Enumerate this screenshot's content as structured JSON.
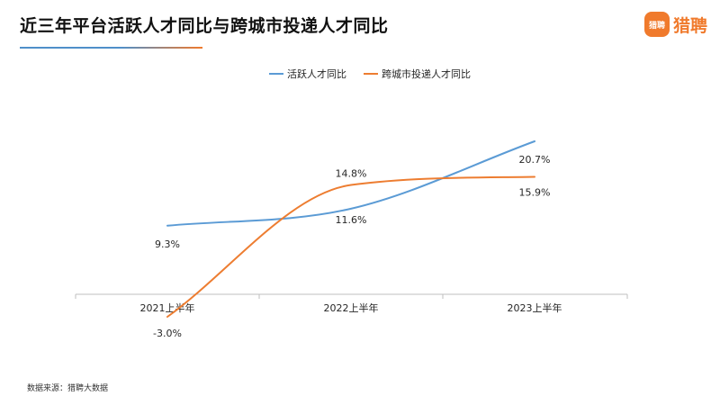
{
  "header": {
    "title": "近三年平台活跃人才同比与跨城市投递人才同比",
    "logo_badge": "猎聘",
    "logo_text": "猎聘"
  },
  "colors": {
    "accent": "#f07a2c",
    "underline_blue": "#4f8fc9",
    "series1": "#5b9bd5",
    "series2": "#ed7d31",
    "axis": "#bfbfbf"
  },
  "footer": {
    "source": "数据来源：猎聘大数据"
  },
  "chart_data": {
    "type": "line",
    "smooth": true,
    "legend_position": "top-center",
    "grid": false,
    "x": [
      "2021上半年",
      "2022上半年",
      "2023上半年"
    ],
    "ylim": [
      -3.0,
      20.7
    ],
    "y_axis_visible": false,
    "series": [
      {
        "name": "活跃人才同比",
        "values": [
          9.3,
          11.6,
          20.7
        ],
        "labels": [
          "9.3%",
          "11.6%",
          "20.7%"
        ],
        "color": "#5b9bd5"
      },
      {
        "name": "跨城市投递人才同比",
        "values": [
          -3.0,
          14.8,
          15.9
        ],
        "labels": [
          "-3.0%",
          "14.8%",
          "15.9%"
        ],
        "color": "#ed7d31"
      }
    ]
  }
}
